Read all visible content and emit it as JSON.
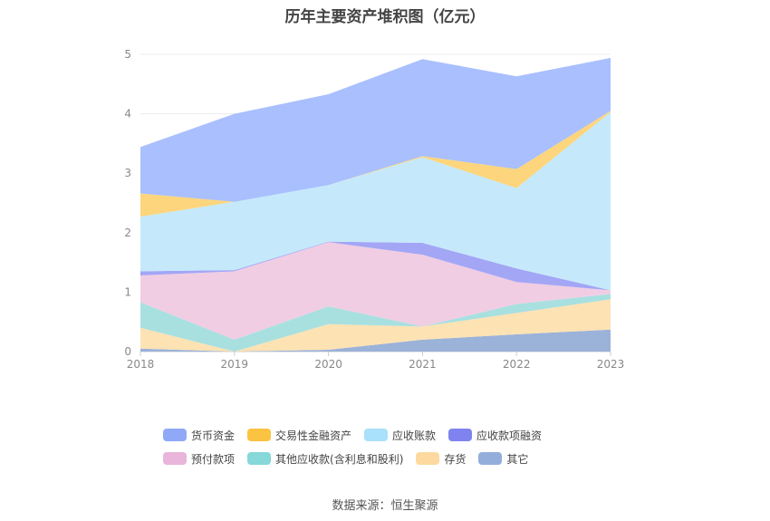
{
  "chart_data": {
    "type": "area",
    "stacked": true,
    "title": "历年主要资产堆积图（亿元）",
    "x": [
      "2018",
      "2019",
      "2020",
      "2021",
      "2022",
      "2023"
    ],
    "y_ticks": [
      "0",
      "1",
      "2",
      "3",
      "4",
      "5"
    ],
    "ylim": [
      0,
      5
    ],
    "grid": true,
    "legend_position": "bottom",
    "series": [
      {
        "name": "其它",
        "color": "#9bb2d9",
        "values": [
          0.05,
          0.0,
          0.03,
          0.2,
          0.29,
          0.37
        ]
      },
      {
        "name": "存货",
        "color": "#fde2b3",
        "values": [
          0.35,
          0.0,
          0.43,
          0.22,
          0.36,
          0.51
        ]
      },
      {
        "name": "其他应收款(含利息和股利)",
        "color": "#a8e0e0",
        "values": [
          0.43,
          0.2,
          0.3,
          0.0,
          0.15,
          0.09
        ]
      },
      {
        "name": "预付款项",
        "color": "#f0cde3",
        "values": [
          0.45,
          1.15,
          1.08,
          1.21,
          0.37,
          0.06
        ]
      },
      {
        "name": "应收款项融资",
        "color": "#a3a6f5",
        "values": [
          0.07,
          0.02,
          0.01,
          0.2,
          0.23,
          0.0
        ]
      },
      {
        "name": "应收账款",
        "color": "#c5e9fb",
        "values": [
          0.92,
          1.15,
          0.95,
          1.44,
          1.35,
          3.0
        ]
      },
      {
        "name": "交易性金融资产",
        "color": "#fdd57c",
        "values": [
          0.39,
          0.0,
          0.0,
          0.02,
          0.32,
          0.02
        ]
      },
      {
        "name": "货币资金",
        "color": "#a9bffe",
        "values": [
          0.78,
          1.48,
          1.53,
          1.63,
          1.56,
          0.89
        ]
      }
    ]
  },
  "legend": {
    "items": [
      {
        "label": "货币资金",
        "color": "#8fa9f7"
      },
      {
        "label": "交易性金融资产",
        "color": "#fbc342"
      },
      {
        "label": "应收账款",
        "color": "#a9e0fb"
      },
      {
        "label": "应收款项融资",
        "color": "#7f83f0"
      },
      {
        "label": "预付款项",
        "color": "#eab5da"
      },
      {
        "label": "其他应收款(含利息和股利)",
        "color": "#87d8d8"
      },
      {
        "label": "存货",
        "color": "#fdd9a0"
      },
      {
        "label": "其它",
        "color": "#94aedb"
      }
    ]
  },
  "source": "数据来源：恒生聚源"
}
